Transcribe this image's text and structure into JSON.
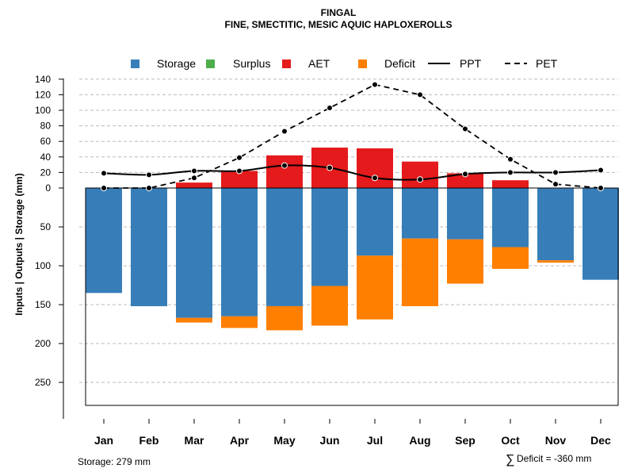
{
  "chart_data": {
    "type": "bar",
    "title": "FINGAL",
    "subtitle": "FINE, SMECTITIC, MESIC AQUIC HAPLOXEROLLS",
    "ylabel": "Inputs | Outputs | Storage    (mm)",
    "categories": [
      "Jan",
      "Feb",
      "Mar",
      "Apr",
      "May",
      "Jun",
      "Jul",
      "Aug",
      "Sep",
      "Oct",
      "Nov",
      "Dec"
    ],
    "upper_axis": {
      "range": [
        0,
        140
      ],
      "ticks": [
        "0",
        "20",
        "40",
        "60",
        "80",
        "100",
        "120",
        "140"
      ]
    },
    "lower_axis": {
      "range": [
        0,
        280
      ],
      "ticks": [
        "50",
        "100",
        "150",
        "200",
        "250"
      ]
    },
    "legend": [
      {
        "label": "Storage",
        "kind": "box",
        "color": "#377EB8"
      },
      {
        "label": "Surplus",
        "kind": "box",
        "color": "#4DAF4A"
      },
      {
        "label": "AET",
        "kind": "box",
        "color": "#E41A1C"
      },
      {
        "label": "Deficit",
        "kind": "box",
        "color": "#FF7F00"
      },
      {
        "label": "PPT",
        "kind": "solid-line",
        "color": "#000000"
      },
      {
        "label": "PET",
        "kind": "dashed-line",
        "color": "#000000"
      }
    ],
    "series": [
      {
        "name": "AET",
        "color": "#E41A1C",
        "values": [
          0,
          0,
          7,
          22,
          42,
          52,
          51,
          34,
          19,
          10,
          0,
          0
        ]
      },
      {
        "name": "Surplus",
        "color": "#4DAF4A",
        "values": [
          0,
          0,
          0,
          0,
          0,
          0,
          0,
          0,
          0,
          0,
          0,
          0
        ]
      },
      {
        "name": "Storage",
        "color": "#377EB8",
        "values": [
          135,
          152,
          167,
          165,
          152,
          126,
          87,
          65,
          66,
          76,
          93,
          118
        ]
      },
      {
        "name": "Deficit",
        "color": "#FF7F00",
        "values": [
          0,
          0,
          6,
          15,
          31,
          51,
          82,
          87,
          57,
          28,
          3,
          0
        ]
      },
      {
        "name": "PPT",
        "color": "#000000",
        "values": [
          19,
          17,
          22,
          22,
          29,
          26,
          13,
          11,
          18,
          20,
          20,
          23
        ]
      },
      {
        "name": "PET",
        "color": "#000000",
        "values": [
          0,
          0,
          13,
          39,
          73,
          103,
          133,
          120,
          76,
          37,
          5,
          0
        ]
      }
    ],
    "footer_left": "Storage: 279 mm",
    "footer_right_symbol": "∑",
    "footer_right": "Deficit = -360 mm"
  }
}
